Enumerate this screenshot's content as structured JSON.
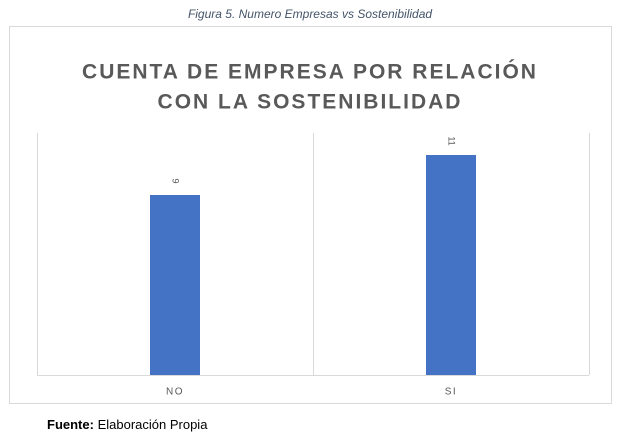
{
  "caption": "Figura 5. Numero Empresas vs Sostenibilidad",
  "chart_data": {
    "type": "bar",
    "title": [
      "CUENTA DE EMPRESA POR RELACIÓN",
      "CON LA SOSTENIBILIDAD"
    ],
    "categories": [
      "NO",
      "SI"
    ],
    "values": [
      9,
      11
    ],
    "color": "#4472c4",
    "ylim": [
      0,
      12
    ],
    "data_labels": true
  },
  "source": {
    "label": "Fuente:",
    "text": "Elaboración Propia"
  }
}
